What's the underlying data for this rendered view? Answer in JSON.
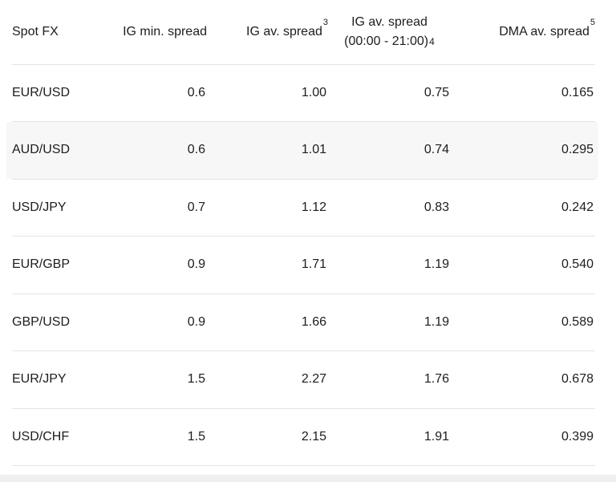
{
  "colors": {
    "text": "#1d1d1d",
    "divider": "#e4e4e4",
    "row_highlight": "#f7f7f8",
    "bottom_band": "#efeff0",
    "page_bg": "#ffffff"
  },
  "table": {
    "columns": {
      "spot_fx": {
        "label": "Spot FX"
      },
      "ig_min": {
        "label": "IG min. spread"
      },
      "ig_av": {
        "label": "IG av. spread",
        "footnote": "3"
      },
      "ig_av_window": {
        "line1": "IG av. spread",
        "line2": "(00:00 - 21:00)",
        "footnote": "4"
      },
      "dma_av": {
        "label": "DMA av. spread",
        "footnote": "5"
      }
    },
    "highlighted_pair": "AUD/USD",
    "rows": [
      {
        "pair": "EUR/USD",
        "ig_min": "0.6",
        "ig_av": "1.00",
        "ig_av_window": "0.75",
        "dma_av": "0.165"
      },
      {
        "pair": "AUD/USD",
        "ig_min": "0.6",
        "ig_av": "1.01",
        "ig_av_window": "0.74",
        "dma_av": "0.295"
      },
      {
        "pair": "USD/JPY",
        "ig_min": "0.7",
        "ig_av": "1.12",
        "ig_av_window": "0.83",
        "dma_av": "0.242"
      },
      {
        "pair": "EUR/GBP",
        "ig_min": "0.9",
        "ig_av": "1.71",
        "ig_av_window": "1.19",
        "dma_av": "0.540"
      },
      {
        "pair": "GBP/USD",
        "ig_min": "0.9",
        "ig_av": "1.66",
        "ig_av_window": "1.19",
        "dma_av": "0.589"
      },
      {
        "pair": "EUR/JPY",
        "ig_min": "1.5",
        "ig_av": "2.27",
        "ig_av_window": "1.76",
        "dma_av": "0.678"
      },
      {
        "pair": "USD/CHF",
        "ig_min": "1.5",
        "ig_av": "2.15",
        "ig_av_window": "1.91",
        "dma_av": "0.399"
      }
    ]
  }
}
